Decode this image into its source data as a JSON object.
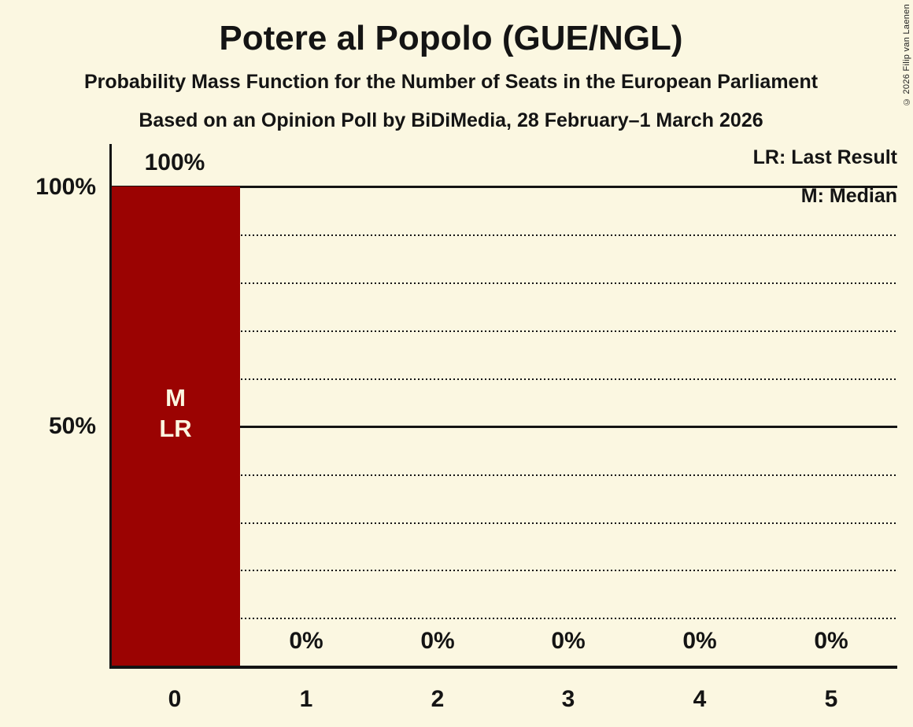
{
  "copyright": "© 2026 Filip van Laenen",
  "chart_data": {
    "type": "bar",
    "title": "Potere al Popolo (GUE/NGL)",
    "subtitle": "Probability Mass Function for the Number of Seats in the European Parliament",
    "source_line": "Based on an Opinion Poll by BiDiMedia, 28 February–1 March 2026",
    "categories": [
      "0",
      "1",
      "2",
      "3",
      "4",
      "5"
    ],
    "values": [
      100,
      0,
      0,
      0,
      0,
      0
    ],
    "value_labels": [
      "100%",
      "0%",
      "0%",
      "0%",
      "0%",
      "0%"
    ],
    "xlabel": "",
    "ylabel": "",
    "ylim": [
      0,
      100
    ],
    "ytick_labels": [
      "100%",
      "50%"
    ],
    "grid": {
      "solid_at_percent": [
        100,
        50
      ],
      "dotted_at_percent": [
        90,
        80,
        70,
        60,
        40,
        30,
        20,
        10
      ]
    },
    "legend": [
      "LR: Last Result",
      "M: Median"
    ],
    "legend_position": "top-right",
    "legend_meaning": {
      "LR": "Last Result",
      "M": "Median"
    },
    "bar_annotations": [
      {
        "category": "0",
        "lines": [
          "M",
          "LR"
        ]
      }
    ],
    "median_category": "0",
    "last_result_category": "0",
    "colors": {
      "background": "#FBF7E1",
      "bar": "#9B0302",
      "text": "#141414",
      "bar_label_text": "#FBF7E1"
    }
  }
}
